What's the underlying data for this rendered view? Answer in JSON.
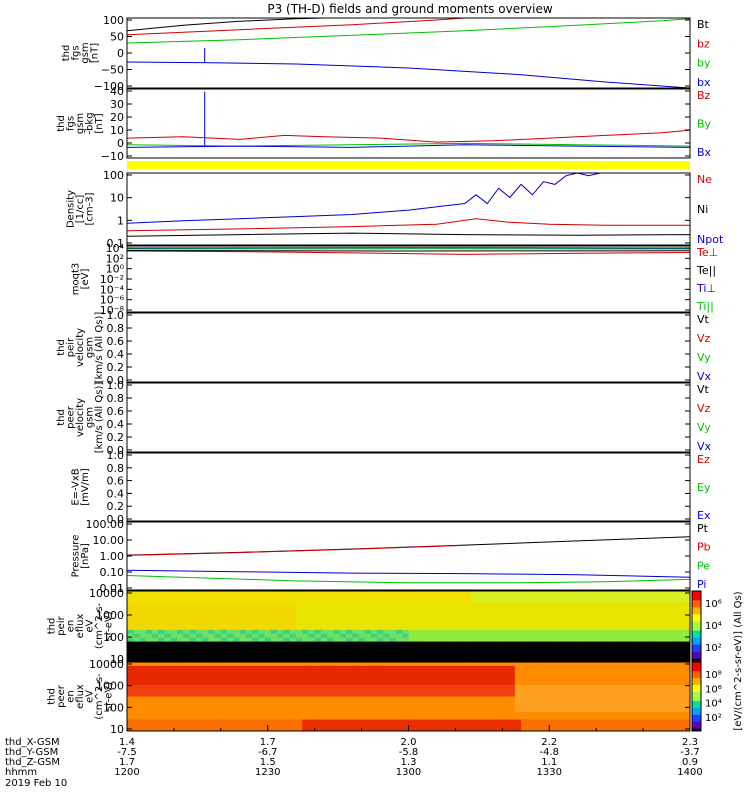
{
  "title": "P3 (TH-D) fields and ground moments overview",
  "chart_data": [
    {
      "type": "line",
      "ylabel": [
        "thd",
        "fgs",
        "gsm",
        "[nT]"
      ],
      "yticks": [
        "100",
        "50",
        "0",
        "−50",
        "−100"
      ],
      "ylim": [
        -100,
        110
      ],
      "legend": [
        {
          "text": "Bt",
          "color": "#000000"
        },
        {
          "text": "bz",
          "color": "#d00000"
        },
        {
          "text": "by",
          "color": "#00c000"
        },
        {
          "text": "bx",
          "color": "#0000d0"
        }
      ],
      "series": [
        {
          "name": "Bt",
          "color": "#000000",
          "x": [
            0,
            0.1,
            0.2,
            0.3,
            0.35,
            0.4
          ],
          "y": [
            72,
            88,
            100,
            108,
            112,
            118
          ]
        },
        {
          "name": "bz",
          "color": "#d00000",
          "x": [
            0,
            0.2,
            0.4,
            0.55,
            0.6
          ],
          "y": [
            60,
            75,
            90,
            104,
            110
          ]
        },
        {
          "name": "by",
          "color": "#00c000",
          "x": [
            0,
            0.2,
            0.4,
            0.6,
            0.8,
            0.95,
            1
          ],
          "y": [
            35,
            45,
            58,
            72,
            88,
            102,
            108
          ]
        },
        {
          "name": "bx",
          "color": "#0000d0",
          "x": [
            0,
            0.15,
            0.3,
            0.5,
            0.7,
            0.85,
            1
          ],
          "y": [
            -22,
            -24,
            -28,
            -40,
            -60,
            -82,
            -100
          ]
        }
      ],
      "spikes": [
        {
          "x": 0.138,
          "color": "#0000d0",
          "from": -22,
          "to": 20
        }
      ]
    },
    {
      "type": "line",
      "ylabel": [
        "thd",
        "fgs",
        "gsm",
        "-bkg",
        "[nT]"
      ],
      "yticks": [
        "40",
        "30",
        "20",
        "10",
        "0",
        "−10"
      ],
      "ylim": [
        -12,
        40
      ],
      "legend": [
        {
          "text": "Bz",
          "color": "#d00000"
        },
        {
          "text": "By",
          "color": "#00c000"
        },
        {
          "text": "Bx",
          "color": "#0000d0"
        }
      ],
      "series": [
        {
          "name": "Bz",
          "color": "#d00000",
          "x": [
            0,
            0.1,
            0.2,
            0.28,
            0.35,
            0.45,
            0.55,
            0.65,
            0.75,
            0.85,
            0.95,
            1
          ],
          "y": [
            3,
            4,
            2,
            5,
            4,
            3,
            0,
            1,
            3,
            5,
            7,
            9
          ]
        },
        {
          "name": "By",
          "color": "#00c000",
          "x": [
            0,
            0.2,
            0.4,
            0.6,
            0.8,
            1
          ],
          "y": [
            -2,
            -3,
            -2,
            -1,
            -2,
            -3
          ]
        },
        {
          "name": "Bx",
          "color": "#0000d0",
          "x": [
            0,
            0.2,
            0.4,
            0.6,
            0.8,
            1
          ],
          "y": [
            -4,
            -3,
            -4,
            -2,
            -3,
            -4
          ]
        }
      ],
      "spikes": [
        {
          "x": 0.138,
          "color": "#0000d0",
          "from": -4,
          "to": 38
        }
      ]
    },
    {
      "type": "line",
      "log": true,
      "ylabel": [
        "Density",
        "[1/cc]",
        "[cm-3]"
      ],
      "yticks": [
        "100",
        "10",
        "1",
        "0.1"
      ],
      "ylim": [
        0.1,
        200
      ],
      "legend": [
        {
          "text": "Ne",
          "color": "#d00000"
        },
        {
          "text": "Ni",
          "color": "#000000"
        },
        {
          "text": "Npot",
          "color": "#0000d0"
        }
      ],
      "series": [
        {
          "name": "Npot",
          "color": "#0000d0",
          "x": [
            0,
            0.1,
            0.2,
            0.3,
            0.4,
            0.5,
            0.6,
            0.62,
            0.64,
            0.66,
            0.68,
            0.7,
            0.72,
            0.74,
            0.76,
            0.78,
            0.8,
            0.82,
            0.84,
            0.85
          ],
          "y": [
            1,
            1.3,
            1.6,
            2,
            2.5,
            4,
            8,
            20,
            8,
            40,
            15,
            60,
            20,
            80,
            60,
            150,
            200,
            150,
            200,
            220
          ]
        },
        {
          "name": "Ne",
          "color": "#d00000",
          "x": [
            0,
            0.2,
            0.4,
            0.55,
            0.62,
            0.68,
            0.75,
            0.85,
            1
          ],
          "y": [
            0.45,
            0.55,
            0.7,
            0.9,
            1.6,
            1.1,
            0.9,
            0.8,
            0.8
          ]
        },
        {
          "name": "Ni",
          "color": "#000000",
          "x": [
            0,
            0.2,
            0.4,
            0.6,
            0.8,
            1
          ],
          "y": [
            0.25,
            0.3,
            0.35,
            0.3,
            0.28,
            0.3
          ]
        }
      ]
    },
    {
      "type": "line",
      "log": true,
      "ylabel": [
        "moqt3",
        "[eV]"
      ],
      "yticks": [
        "10⁴",
        "10²",
        "10⁰",
        "10⁻²",
        "10⁻⁴",
        "10⁻⁶",
        "10⁻⁸"
      ],
      "ylim": [
        1e-09,
        20000.0
      ],
      "legend": [
        {
          "text": "Te⊥",
          "color": "#d00000"
        },
        {
          "text": "Te||",
          "color": "#000000"
        },
        {
          "text": "Ti⊥",
          "color": "#0000d0"
        },
        {
          "text": "Ti||",
          "color": "#00c000"
        }
      ],
      "series": [
        {
          "name": "Ti⊥",
          "color": "#0000d0",
          "x": [
            0,
            0.5,
            1
          ],
          "y": [
            8000,
            9000,
            8000
          ]
        },
        {
          "name": "Ti||",
          "color": "#00c000",
          "x": [
            0,
            0.5,
            1
          ],
          "y": [
            5000,
            5500,
            5000
          ]
        },
        {
          "name": "Te⊥",
          "color": "#d00000",
          "x": [
            0,
            0.2,
            0.4,
            0.6,
            0.8,
            1
          ],
          "y": [
            2000,
            1500,
            800,
            400,
            700,
            1000
          ]
        },
        {
          "name": "Te||",
          "color": "#000000",
          "x": [
            0,
            0.5,
            1
          ],
          "y": [
            2500,
            2000,
            2200
          ]
        }
      ]
    },
    {
      "type": "line",
      "ylabel": [
        "thd",
        "peir",
        "velocity",
        "gsm",
        "[km/s (All Qs)]"
      ],
      "yticks": [
        "1.0",
        "0.8",
        "0.6",
        "0.4",
        "0.2",
        "0.0"
      ],
      "ylim": [
        0,
        1
      ],
      "legend": [
        {
          "text": "Vt",
          "color": "#000000"
        },
        {
          "text": "Vz",
          "color": "#d00000"
        },
        {
          "text": "Vy",
          "color": "#00c000"
        },
        {
          "text": "Vx",
          "color": "#0000d0"
        }
      ],
      "series": []
    },
    {
      "type": "line",
      "ylabel": [
        "thd",
        "peer",
        "velocity",
        "gsm",
        "[km/s (All Qs)]"
      ],
      "yticks": [
        "1.0",
        "0.8",
        "0.6",
        "0.4",
        "0.2",
        "0.0"
      ],
      "ylim": [
        0,
        1
      ],
      "legend": [
        {
          "text": "Vt",
          "color": "#000000"
        },
        {
          "text": "Vz",
          "color": "#d00000"
        },
        {
          "text": "Vy",
          "color": "#00c000"
        },
        {
          "text": "Vx",
          "color": "#0000d0"
        }
      ],
      "series": []
    },
    {
      "type": "line",
      "ylabel": [
        "E=-VxB",
        "[mV/m]"
      ],
      "yticks": [
        "1.0",
        "0.8",
        "0.6",
        "0.4",
        "0.2",
        "0.0"
      ],
      "ylim": [
        0,
        1
      ],
      "legend": [
        {
          "text": "Ez",
          "color": "#d00000"
        },
        {
          "text": "Ey",
          "color": "#00c000"
        },
        {
          "text": "Ex",
          "color": "#0000d0"
        }
      ],
      "series": []
    },
    {
      "type": "line",
      "log": true,
      "ylabel": [
        "Pressure",
        "[nPa]"
      ],
      "yticks": [
        "100.00",
        "10.00",
        "1.00",
        "0.10",
        "0.01"
      ],
      "ylim": [
        0.01,
        300
      ],
      "legend": [
        {
          "text": "Pt",
          "color": "#000000"
        },
        {
          "text": "Pb",
          "color": "#d00000"
        },
        {
          "text": "Pe",
          "color": "#00c000"
        },
        {
          "text": "Pi",
          "color": "#0000d0"
        }
      ],
      "series": [
        {
          "name": "Pt",
          "color": "#000000",
          "x": [
            0,
            0.2,
            0.4,
            0.6,
            0.8,
            1
          ],
          "y": [
            2,
            3,
            5,
            9,
            17,
            32
          ]
        },
        {
          "name": "Pb",
          "color": "#d00000",
          "x": [
            0,
            0.2,
            0.4,
            0.6
          ],
          "y": [
            1.9,
            2.9,
            4.8,
            8.6
          ]
        },
        {
          "name": "Pi",
          "color": "#0000d0",
          "x": [
            0,
            0.2,
            0.4,
            0.6,
            0.8,
            1
          ],
          "y": [
            0.2,
            0.16,
            0.13,
            0.12,
            0.1,
            0.07
          ]
        },
        {
          "name": "Pe",
          "color": "#00c000",
          "x": [
            0,
            0.15,
            0.3,
            0.5,
            0.7,
            0.85,
            1
          ],
          "y": [
            0.09,
            0.06,
            0.04,
            0.03,
            0.03,
            0.035,
            0.05
          ]
        }
      ]
    },
    {
      "type": "heatmap",
      "ylabel": [
        "thd",
        "peir",
        "en",
        "eflux",
        "eV",
        "(cm^2-s-",
        "sr-eV)"
      ],
      "yticks": [
        "10000",
        "1000",
        "100",
        "10"
      ],
      "ylim": [
        5,
        30000
      ],
      "colorbar_ticks": [
        "10⁶",
        "10⁴",
        "10²"
      ]
    },
    {
      "type": "heatmap",
      "ylabel": [
        "thd",
        "peer",
        "en",
        "eflux",
        "eV",
        "(cm^2-s-",
        "sr-eV)"
      ],
      "yticks": [
        "10000",
        "1000",
        "100",
        "10"
      ],
      "ylim": [
        5,
        30000
      ],
      "colorbar_ticks": [
        "10⁸",
        "10⁶",
        "10⁴",
        "10²"
      ]
    }
  ],
  "colorbar_label": "[eV/(cm^2-s-sr-eV)] (All Qs)",
  "x_axis": {
    "rows": [
      {
        "label": "thd_X-GSM",
        "values": [
          "1.4",
          "1.7",
          "2.0",
          "2.2",
          "2.3"
        ]
      },
      {
        "label": "thd_Y-GSM",
        "values": [
          "-7.5",
          "-6.7",
          "-5.8",
          "-4.8",
          "-3.7"
        ]
      },
      {
        "label": "thd_Z-GSM",
        "values": [
          "1.7",
          "1.5",
          "1.3",
          "1.1",
          "0.9"
        ]
      },
      {
        "label": "hhmm",
        "values": [
          "1200",
          "1230",
          "1300",
          "1330",
          "1400"
        ]
      }
    ],
    "date": "2019 Feb 10"
  }
}
